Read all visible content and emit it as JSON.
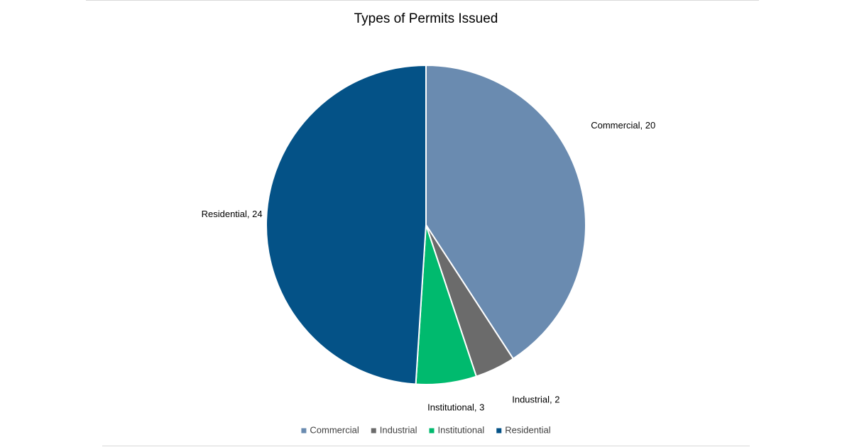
{
  "chart_data": {
    "type": "pie",
    "title": "Types of Permits Issued",
    "categories": [
      "Commercial",
      "Industrial",
      "Institutional",
      "Residential"
    ],
    "values": [
      20,
      2,
      3,
      24
    ],
    "colors": [
      "#6a8bb0",
      "#6b6b6b",
      "#00ba6e",
      "#045287"
    ],
    "data_labels": [
      "Commercial, 20",
      "Industrial, 2",
      "Institutional, 3",
      "Residential, 24"
    ],
    "legend": {
      "position": "bottom",
      "entries": [
        "Commercial",
        "Industrial",
        "Institutional",
        "Residential"
      ]
    },
    "start_angle": "12 o'clock, clockwise"
  }
}
